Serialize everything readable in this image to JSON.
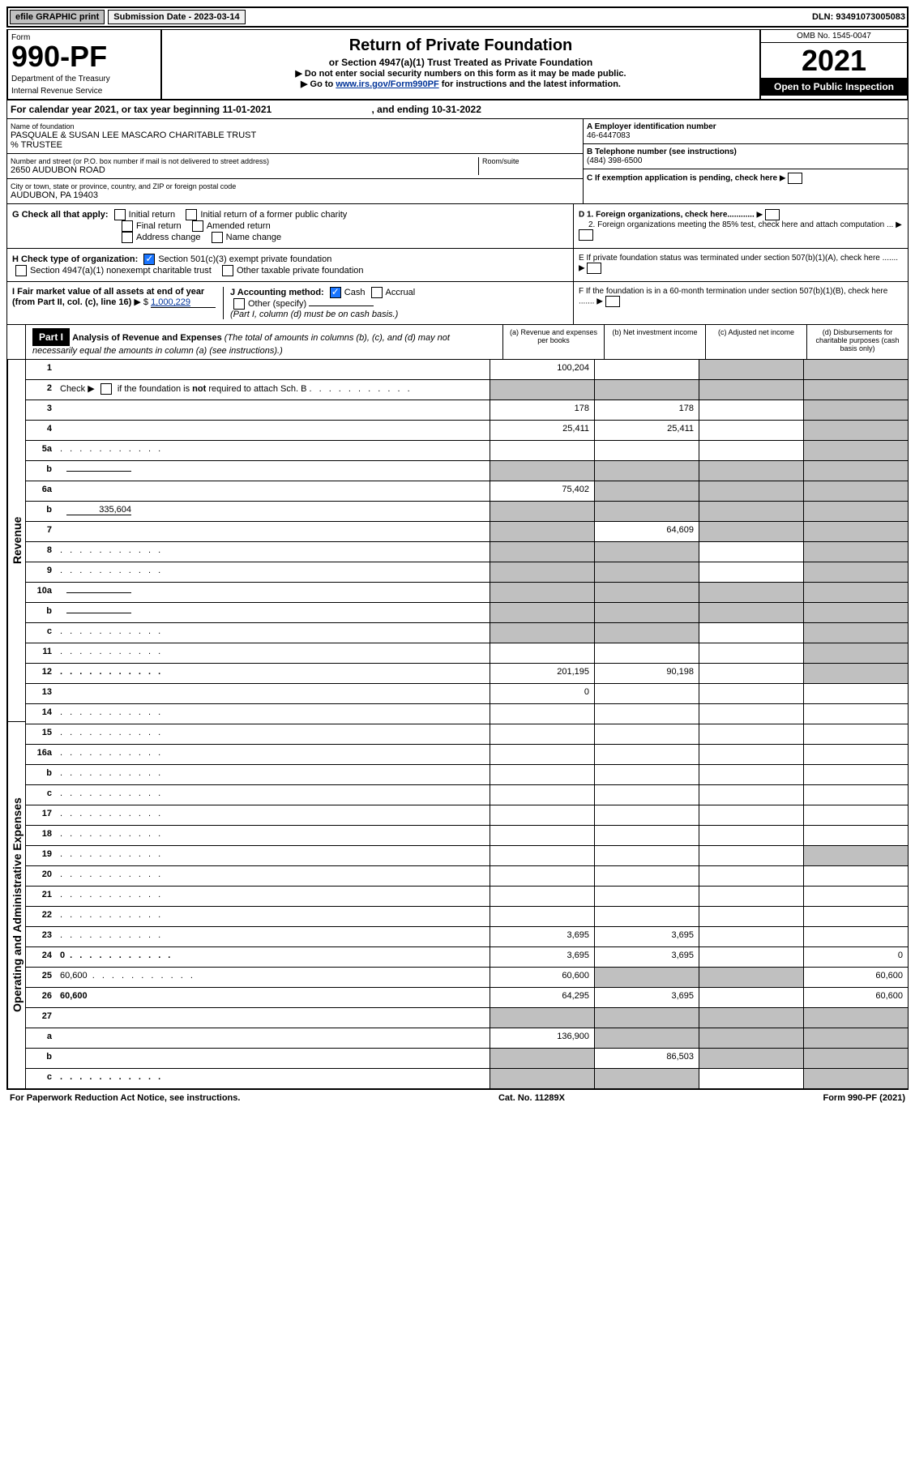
{
  "topbar": {
    "efile": "efile GRAPHIC print",
    "subdate_label": "Submission Date - 2023-03-14",
    "dln": "DLN: 93491073005083"
  },
  "header": {
    "form_word": "Form",
    "form_number": "990-PF",
    "dept": "Department of the Treasury",
    "irs": "Internal Revenue Service",
    "title": "Return of Private Foundation",
    "subtitle": "or Section 4947(a)(1) Trust Treated as Private Foundation",
    "warn": "▶ Do not enter social security numbers on this form as it may be made public.",
    "goto_pre": "▶ Go to ",
    "goto_link": "www.irs.gov/Form990PF",
    "goto_post": " for instructions and the latest information.",
    "omb": "OMB No. 1545-0047",
    "year": "2021",
    "inspect": "Open to Public Inspection"
  },
  "calyear": {
    "text": "For calendar year 2021, or tax year beginning 11-01-2021",
    "ending": ", and ending 10-31-2022"
  },
  "info": {
    "name_label": "Name of foundation",
    "name": "PASQUALE & SUSAN LEE MASCARO CHARITABLE TRUST",
    "trustee": "% TRUSTEE",
    "addr_label": "Number and street (or P.O. box number if mail is not delivered to street address)",
    "addr": "2650 AUDUBON ROAD",
    "room_label": "Room/suite",
    "city_label": "City or town, state or province, country, and ZIP or foreign postal code",
    "city": "AUDUBON, PA  19403",
    "a_label": "A Employer identification number",
    "a_val": "46-6447083",
    "b_label": "B Telephone number (see instructions)",
    "b_val": "(484) 398-6500",
    "c_label": "C If exemption application is pending, check here",
    "d1": "D 1. Foreign organizations, check here............",
    "d2": "2. Foreign organizations meeting the 85% test, check here and attach computation ...",
    "e": "E  If private foundation status was terminated under section 507(b)(1)(A), check here .......",
    "f": "F  If the foundation is in a 60-month termination under section 507(b)(1)(B), check here ......."
  },
  "g": {
    "label": "G Check all that apply:",
    "initial": "Initial return",
    "initial_former": "Initial return of a former public charity",
    "final": "Final return",
    "amended": "Amended return",
    "addr_change": "Address change",
    "name_change": "Name change"
  },
  "h": {
    "label": "H Check type of organization:",
    "opt1": "Section 501(c)(3) exempt private foundation",
    "opt2": "Section 4947(a)(1) nonexempt charitable trust",
    "opt3": "Other taxable private foundation"
  },
  "i": {
    "label": "I Fair market value of all assets at end of year (from Part II, col. (c), line 16)",
    "val": "1,000,229"
  },
  "j": {
    "label": "J Accounting method:",
    "cash": "Cash",
    "accrual": "Accrual",
    "other": "Other (specify)",
    "note": "(Part I, column (d) must be on cash basis.)"
  },
  "part1": {
    "label": "Part I",
    "title": "Analysis of Revenue and Expenses",
    "note": " (The total of amounts in columns (b), (c), and (d) may not necessarily equal the amounts in column (a) (see instructions).)",
    "col_a": "(a)   Revenue and expenses per books",
    "col_b": "(b)   Net investment income",
    "col_c": "(c)   Adjusted net income",
    "col_d": "(d)   Disbursements for charitable purposes (cash basis only)"
  },
  "side": {
    "revenue": "Revenue",
    "expenses": "Operating and Administrative Expenses"
  },
  "lines": [
    {
      "n": "1",
      "d": "",
      "a": "100,204",
      "b": "",
      "c": "",
      "sh": [
        "",
        "",
        "c",
        "d"
      ]
    },
    {
      "n": "2",
      "d": "",
      "a": "",
      "b": "",
      "c": "",
      "sh": [
        "a",
        "b",
        "c",
        "d"
      ],
      "bold_not": true
    },
    {
      "n": "3",
      "d": "",
      "a": "178",
      "b": "178",
      "c": "",
      "sh": [
        "",
        "",
        "",
        "d"
      ]
    },
    {
      "n": "4",
      "d": "",
      "a": "25,411",
      "b": "25,411",
      "c": "",
      "sh": [
        "",
        "",
        "",
        "d"
      ]
    },
    {
      "n": "5a",
      "d": "",
      "a": "",
      "b": "",
      "c": "",
      "sh": [
        "",
        "",
        "",
        "d"
      ],
      "dots": true
    },
    {
      "n": "b",
      "d": "",
      "a": "",
      "b": "",
      "c": "",
      "sh": [
        "a",
        "b",
        "c",
        "d"
      ],
      "inline": ""
    },
    {
      "n": "6a",
      "d": "",
      "a": "75,402",
      "b": "",
      "c": "",
      "sh": [
        "",
        "b",
        "c",
        "d"
      ]
    },
    {
      "n": "b",
      "d": "",
      "a": "",
      "b": "",
      "c": "",
      "sh": [
        "a",
        "b",
        "c",
        "d"
      ],
      "inline": "335,604"
    },
    {
      "n": "7",
      "d": "",
      "a": "",
      "b": "64,609",
      "c": "",
      "sh": [
        "a",
        "",
        "c",
        "d"
      ]
    },
    {
      "n": "8",
      "d": "",
      "a": "",
      "b": "",
      "c": "",
      "sh": [
        "a",
        "b",
        "",
        "d"
      ],
      "dots": true
    },
    {
      "n": "9",
      "d": "",
      "a": "",
      "b": "",
      "c": "",
      "sh": [
        "a",
        "b",
        "",
        "d"
      ],
      "dots": true
    },
    {
      "n": "10a",
      "d": "",
      "a": "",
      "b": "",
      "c": "",
      "sh": [
        "a",
        "b",
        "c",
        "d"
      ],
      "inline": ""
    },
    {
      "n": "b",
      "d": "",
      "a": "",
      "b": "",
      "c": "",
      "sh": [
        "a",
        "b",
        "c",
        "d"
      ],
      "inline": ""
    },
    {
      "n": "c",
      "d": "",
      "a": "",
      "b": "",
      "c": "",
      "sh": [
        "a",
        "b",
        "",
        "d"
      ],
      "dots": true
    },
    {
      "n": "11",
      "d": "",
      "a": "",
      "b": "",
      "c": "",
      "sh": [
        "",
        "",
        "",
        "d"
      ],
      "dots": true
    },
    {
      "n": "12",
      "d": "",
      "a": "201,195",
      "b": "90,198",
      "c": "",
      "sh": [
        "",
        "",
        "",
        "d"
      ],
      "bold": true,
      "dots": true
    },
    {
      "n": "13",
      "d": "",
      "a": "0",
      "b": "",
      "c": "",
      "sh": [
        "",
        "",
        "",
        ""
      ]
    },
    {
      "n": "14",
      "d": "",
      "a": "",
      "b": "",
      "c": "",
      "sh": [
        "",
        "",
        "",
        ""
      ],
      "dots": true
    },
    {
      "n": "15",
      "d": "",
      "a": "",
      "b": "",
      "c": "",
      "sh": [
        "",
        "",
        "",
        ""
      ],
      "dots": true
    },
    {
      "n": "16a",
      "d": "",
      "a": "",
      "b": "",
      "c": "",
      "sh": [
        "",
        "",
        "",
        ""
      ],
      "dots": true
    },
    {
      "n": "b",
      "d": "",
      "a": "",
      "b": "",
      "c": "",
      "sh": [
        "",
        "",
        "",
        ""
      ],
      "dots": true
    },
    {
      "n": "c",
      "d": "",
      "a": "",
      "b": "",
      "c": "",
      "sh": [
        "",
        "",
        "",
        ""
      ],
      "dots": true
    },
    {
      "n": "17",
      "d": "",
      "a": "",
      "b": "",
      "c": "",
      "sh": [
        "",
        "",
        "",
        ""
      ],
      "dots": true
    },
    {
      "n": "18",
      "d": "",
      "a": "",
      "b": "",
      "c": "",
      "sh": [
        "",
        "",
        "",
        ""
      ],
      "dots": true
    },
    {
      "n": "19",
      "d": "",
      "a": "",
      "b": "",
      "c": "",
      "sh": [
        "",
        "",
        "",
        "d"
      ],
      "dots": true
    },
    {
      "n": "20",
      "d": "",
      "a": "",
      "b": "",
      "c": "",
      "sh": [
        "",
        "",
        "",
        ""
      ],
      "dots": true
    },
    {
      "n": "21",
      "d": "",
      "a": "",
      "b": "",
      "c": "",
      "sh": [
        "",
        "",
        "",
        ""
      ],
      "dots": true
    },
    {
      "n": "22",
      "d": "",
      "a": "",
      "b": "",
      "c": "",
      "sh": [
        "",
        "",
        "",
        ""
      ],
      "dots": true
    },
    {
      "n": "23",
      "d": "",
      "a": "3,695",
      "b": "3,695",
      "c": "",
      "sh": [
        "",
        "",
        "",
        ""
      ],
      "dots": true
    },
    {
      "n": "24",
      "d": "0",
      "a": "3,695",
      "b": "3,695",
      "c": "",
      "sh": [
        "",
        "",
        "",
        ""
      ],
      "bold": true,
      "dots": true
    },
    {
      "n": "25",
      "d": "60,600",
      "a": "60,600",
      "b": "",
      "c": "",
      "sh": [
        "",
        "b",
        "c",
        ""
      ],
      "dots": true
    },
    {
      "n": "26",
      "d": "60,600",
      "a": "64,295",
      "b": "3,695",
      "c": "",
      "sh": [
        "",
        "",
        "",
        ""
      ],
      "bold": true
    },
    {
      "n": "27",
      "d": "",
      "a": "",
      "b": "",
      "c": "",
      "sh": [
        "a",
        "b",
        "c",
        "d"
      ]
    },
    {
      "n": "a",
      "d": "",
      "a": "136,900",
      "b": "",
      "c": "",
      "sh": [
        "",
        "b",
        "c",
        "d"
      ],
      "bold": true
    },
    {
      "n": "b",
      "d": "",
      "a": "",
      "b": "86,503",
      "c": "",
      "sh": [
        "a",
        "",
        "c",
        "d"
      ],
      "bold": true
    },
    {
      "n": "c",
      "d": "",
      "a": "",
      "b": "",
      "c": "",
      "sh": [
        "a",
        "b",
        "",
        "d"
      ],
      "bold": true,
      "dots": true
    }
  ],
  "footer": {
    "left": "For Paperwork Reduction Act Notice, see instructions.",
    "mid": "Cat. No. 11289X",
    "right": "Form 990-PF (2021)"
  }
}
